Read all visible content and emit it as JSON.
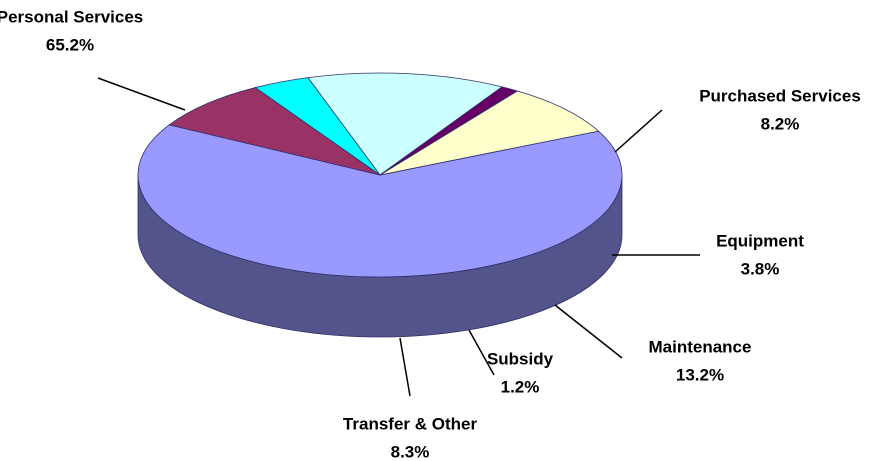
{
  "chart_data": {
    "type": "pie",
    "three_d": true,
    "categories": [
      "Personal Services",
      "Purchased Services",
      "Equipment",
      "Maintenance",
      "Subsidy",
      "Transfer & Other"
    ],
    "values": [
      65.2,
      8.2,
      3.8,
      13.2,
      1.2,
      8.3
    ],
    "value_labels": [
      "65.2%",
      "8.2%",
      "3.8%",
      "13.2%",
      "1.2%",
      "8.3%"
    ],
    "colors": [
      "#9999ff",
      "#993366",
      "#00ffff",
      "#ccffff",
      "#660066",
      "#ffffcc"
    ]
  }
}
